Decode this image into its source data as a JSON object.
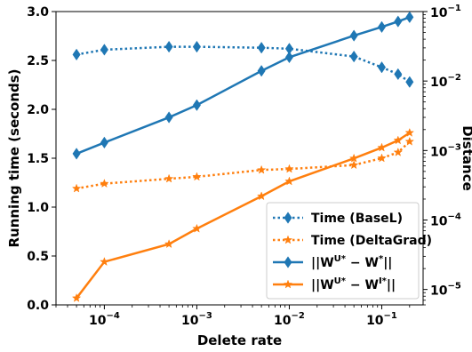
{
  "chart_data": {
    "type": "line",
    "x": [
      5e-05,
      0.0001,
      0.0005,
      0.001,
      0.005,
      0.01,
      0.05,
      0.1,
      0.15,
      0.2
    ],
    "xscale": "log",
    "xlim": [
      3e-05,
      0.28
    ],
    "xlabel": "Delete rate",
    "x_ticks": [
      {
        "value": 0.0001,
        "base": "10",
        "exp": "−4"
      },
      {
        "value": 0.001,
        "base": "10",
        "exp": "−3"
      },
      {
        "value": 0.01,
        "base": "10",
        "exp": "−2"
      },
      {
        "value": 0.1,
        "base": "10",
        "exp": "−1"
      }
    ],
    "ylabel_left": "Running time (seconds)",
    "ylim_left": [
      0.0,
      3.0
    ],
    "y_left_ticks": [
      "0.0",
      "0.5",
      "1.0",
      "1.5",
      "2.0",
      "2.5",
      "3.0"
    ],
    "ylabel_right": "Distance",
    "yscale_right": "log",
    "ylim_right": [
      6e-06,
      0.1
    ],
    "y_right_ticks": [
      {
        "value": 0.1,
        "base": "10",
        "exp": "−1"
      },
      {
        "value": 0.01,
        "base": "10",
        "exp": "−2"
      },
      {
        "value": 0.001,
        "base": "10",
        "exp": "−3"
      },
      {
        "value": 0.0001,
        "base": "10",
        "exp": "−4"
      },
      {
        "value": 1e-05,
        "base": "10",
        "exp": "−5"
      }
    ],
    "grid": false,
    "legend_position": "lower-right",
    "series": [
      {
        "name": "Time (BaseL)",
        "axis": "left",
        "color": "#1f77b4",
        "linestyle": "dotted",
        "marker": "diamond",
        "values": [
          2.56,
          2.61,
          2.64,
          2.64,
          2.63,
          2.62,
          2.54,
          2.43,
          2.36,
          2.28
        ]
      },
      {
        "name": "Time (DeltaGrad)",
        "axis": "left",
        "color": "#ff7f0e",
        "linestyle": "dotted",
        "marker": "star",
        "values": [
          1.19,
          1.24,
          1.29,
          1.31,
          1.38,
          1.39,
          1.43,
          1.5,
          1.56,
          1.67
        ]
      },
      {
        "name_parts": [
          "||W",
          "U*",
          " − W",
          "*",
          "||"
        ],
        "axis": "right",
        "color": "#1f77b4",
        "linestyle": "solid",
        "marker": "diamond",
        "values": [
          0.0009,
          0.0013,
          0.003,
          0.0045,
          0.014,
          0.022,
          0.045,
          0.06,
          0.072,
          0.083
        ]
      },
      {
        "name_parts": [
          "||W",
          "U*",
          " − W",
          "I*",
          "||"
        ],
        "axis": "right",
        "color": "#ff7f0e",
        "linestyle": "solid",
        "marker": "star",
        "values": [
          7.5e-06,
          2.5e-05,
          4.5e-05,
          7.5e-05,
          0.00022,
          0.00036,
          0.00077,
          0.0011,
          0.0014,
          0.0018
        ]
      }
    ]
  }
}
